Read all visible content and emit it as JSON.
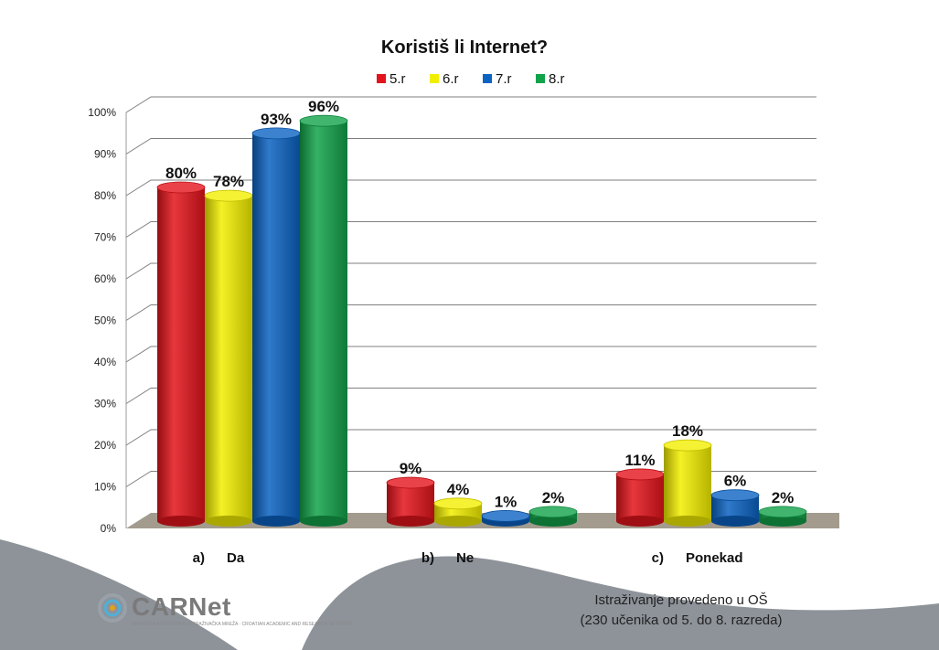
{
  "chart_data": {
    "type": "bar",
    "title": "Koristiš li Internet?",
    "categories": [
      "Da",
      "Ne",
      "Ponekad"
    ],
    "category_prefixes": [
      "a)",
      "b)",
      "c)"
    ],
    "series": [
      {
        "name": "5.r",
        "values": [
          80,
          9,
          11
        ],
        "color": "#e3141b"
      },
      {
        "name": "6.r",
        "values": [
          78,
          4,
          18
        ],
        "color": "#f2ee00"
      },
      {
        "name": "7.r",
        "values": [
          93,
          1,
          6
        ],
        "color": "#0b63c2"
      },
      {
        "name": "8.r",
        "values": [
          96,
          2,
          2
        ],
        "color": "#12a34a"
      }
    ],
    "ylim": [
      0,
      100
    ],
    "yticks": [
      "0%",
      "10%",
      "20%",
      "30%",
      "40%",
      "50%",
      "60%",
      "70%",
      "80%",
      "90%",
      "100%"
    ],
    "value_suffix": "%",
    "grid": true,
    "legend_position": "top-center"
  },
  "footer": {
    "line1": "Istraživanje provedeno u OŠ",
    "line2": "(230 učenika od 5. do 8. razreda)"
  },
  "logo": {
    "name": "CARNet",
    "subtitle": "HRVATSKA AKADEMSKA I ISTRAŽIVAČKA MREŽA · CROATIAN ACADEMIC AND RESEARCH NETWORK"
  }
}
